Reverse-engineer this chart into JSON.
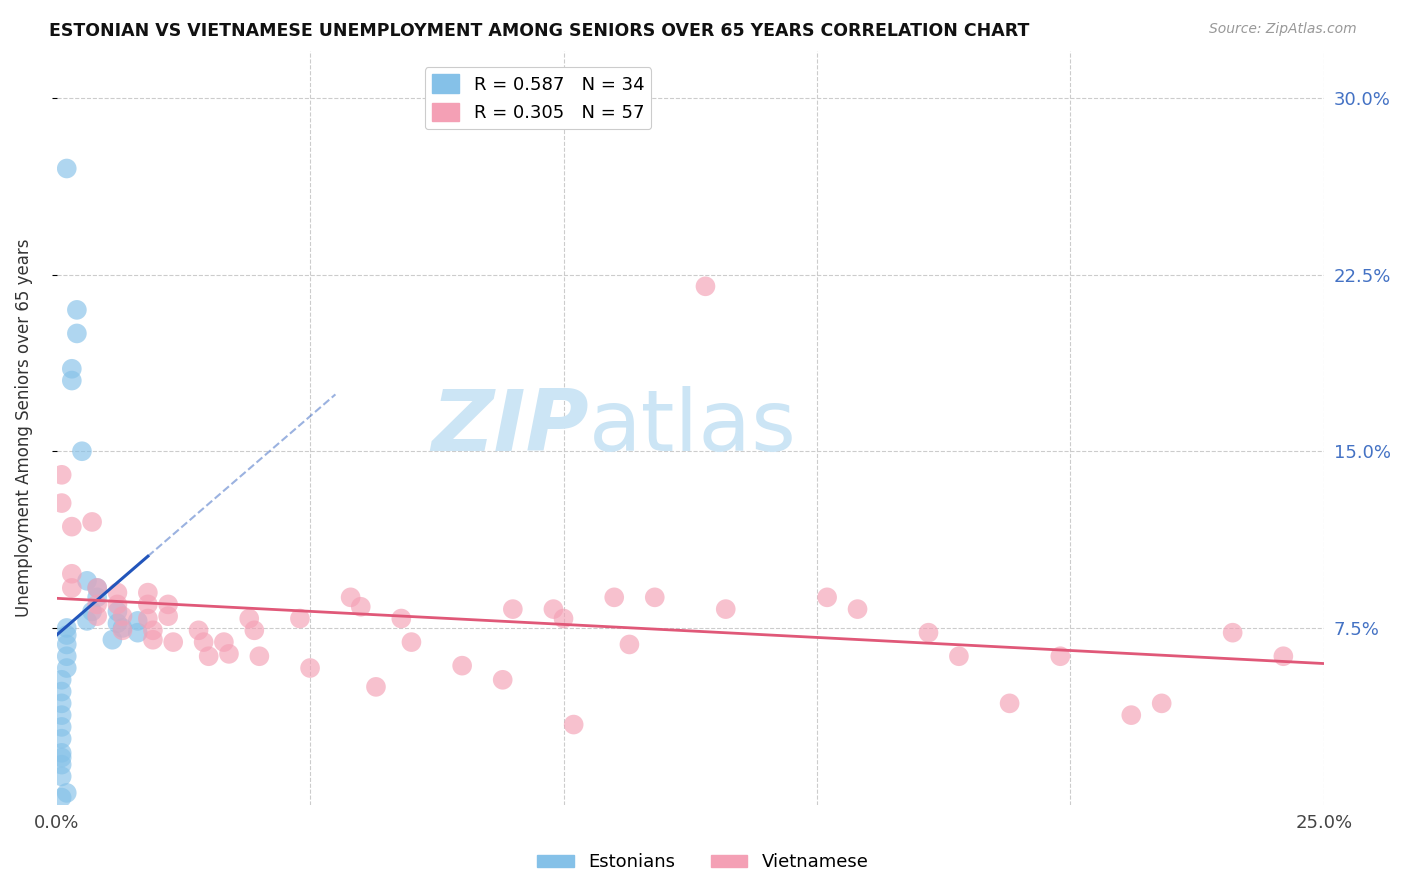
{
  "title": "ESTONIAN VS VIETNAMESE UNEMPLOYMENT AMONG SENIORS OVER 65 YEARS CORRELATION CHART",
  "source": "Source: ZipAtlas.com",
  "ylabel": "Unemployment Among Seniors over 65 years",
  "xlim": [
    0.0,
    0.25
  ],
  "ylim": [
    0.0,
    0.32
  ],
  "xticks": [
    0.0,
    0.05,
    0.1,
    0.15,
    0.2,
    0.25
  ],
  "xtick_labels": [
    "0.0%",
    "",
    "",
    "",
    "",
    "25.0%"
  ],
  "ytick_labels_right": [
    "30.0%",
    "22.5%",
    "15.0%",
    "7.5%"
  ],
  "ytick_vals_right": [
    0.3,
    0.225,
    0.15,
    0.075
  ],
  "grid_color": "#cccccc",
  "background_color": "#ffffff",
  "estonian_color": "#85C1E8",
  "vietnamese_color": "#F4A0B5",
  "estonian_line_color": "#2255BB",
  "vietnamese_line_color": "#E05878",
  "estonian_R": 0.587,
  "estonian_N": 34,
  "vietnamese_R": 0.305,
  "vietnamese_N": 57,
  "watermark_zip": "ZIP",
  "watermark_atlas": "atlas",
  "watermark_color": "#cce5f5",
  "estonian_x": [
    0.002,
    0.005,
    0.004,
    0.004,
    0.003,
    0.003,
    0.006,
    0.008,
    0.008,
    0.007,
    0.006,
    0.002,
    0.002,
    0.002,
    0.002,
    0.002,
    0.001,
    0.001,
    0.001,
    0.001,
    0.001,
    0.001,
    0.001,
    0.001,
    0.001,
    0.001,
    0.012,
    0.012,
    0.013,
    0.011,
    0.016,
    0.016,
    0.001,
    0.002
  ],
  "estonian_y": [
    0.27,
    0.15,
    0.21,
    0.2,
    0.185,
    0.18,
    0.095,
    0.092,
    0.088,
    0.082,
    0.078,
    0.075,
    0.072,
    0.068,
    0.063,
    0.058,
    0.053,
    0.048,
    0.043,
    0.038,
    0.033,
    0.028,
    0.022,
    0.017,
    0.012,
    0.003,
    0.082,
    0.077,
    0.075,
    0.07,
    0.078,
    0.073,
    0.02,
    0.005
  ],
  "vietnamese_x": [
    0.001,
    0.001,
    0.003,
    0.003,
    0.003,
    0.007,
    0.008,
    0.008,
    0.008,
    0.012,
    0.012,
    0.013,
    0.013,
    0.018,
    0.018,
    0.018,
    0.019,
    0.019,
    0.022,
    0.022,
    0.023,
    0.028,
    0.029,
    0.03,
    0.033,
    0.034,
    0.038,
    0.039,
    0.04,
    0.048,
    0.05,
    0.058,
    0.06,
    0.063,
    0.068,
    0.07,
    0.08,
    0.088,
    0.09,
    0.098,
    0.1,
    0.102,
    0.11,
    0.113,
    0.118,
    0.128,
    0.132,
    0.152,
    0.158,
    0.172,
    0.178,
    0.188,
    0.198,
    0.212,
    0.218,
    0.232,
    0.242
  ],
  "vietnamese_y": [
    0.14,
    0.128,
    0.118,
    0.098,
    0.092,
    0.12,
    0.092,
    0.085,
    0.08,
    0.09,
    0.085,
    0.08,
    0.074,
    0.09,
    0.085,
    0.079,
    0.074,
    0.07,
    0.085,
    0.08,
    0.069,
    0.074,
    0.069,
    0.063,
    0.069,
    0.064,
    0.079,
    0.074,
    0.063,
    0.079,
    0.058,
    0.088,
    0.084,
    0.05,
    0.079,
    0.069,
    0.059,
    0.053,
    0.083,
    0.083,
    0.079,
    0.034,
    0.088,
    0.068,
    0.088,
    0.22,
    0.083,
    0.088,
    0.083,
    0.073,
    0.063,
    0.043,
    0.063,
    0.038,
    0.043,
    0.073,
    0.063
  ]
}
